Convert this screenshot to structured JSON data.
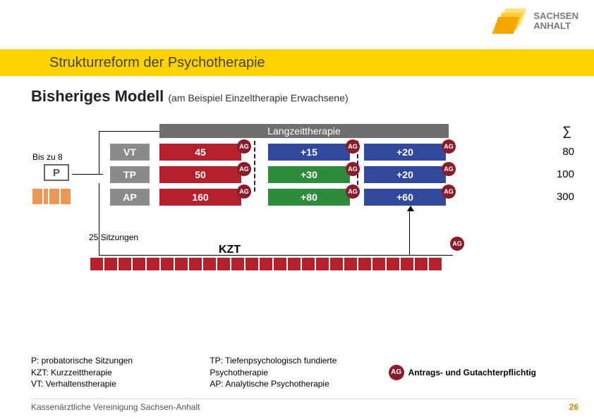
{
  "brand": {
    "line1": "SACHSEN",
    "line2": "ANHALT",
    "logo_colors": [
      "#f5a500",
      "#ffcd3a",
      "#ffe07a"
    ]
  },
  "title": "Strukturreform der Psychotherapie",
  "subtitle_main": "Bisheriges Modell",
  "subtitle_note": "(am Beispiel Einzeltherapie Erwachsene)",
  "lzt_header": "Langzeittherapie",
  "sigma": "∑",
  "bis_label": "Bis zu 8",
  "p_label": "P",
  "p_small_widths": [
    14,
    6,
    14,
    14
  ],
  "p_small_height": 22,
  "rows": {
    "vt": {
      "tag": "VT",
      "b1": "45",
      "b2": "+15",
      "b3": "+20",
      "c1": "#b5202d",
      "c2": "#324a9e",
      "c3": "#324a9e",
      "sum": "80"
    },
    "tp": {
      "tag": "TP",
      "b1": "50",
      "b2": "+30",
      "b3": "+20",
      "c1": "#b5202d",
      "c2": "#2e8b3e",
      "c3": "#324a9e",
      "sum": "100"
    },
    "ap": {
      "tag": "AP",
      "b1": "160",
      "b2": "+80",
      "b3": "+60",
      "c1": "#b5202d",
      "c2": "#2e8b3e",
      "c3": "#324a9e",
      "sum": "300"
    }
  },
  "ag_text": "AG",
  "sitzungen": "25 Sitzungen",
  "kzt_label": "KZT",
  "kzt_count": 25,
  "legend": {
    "col1": [
      "P: probatorische Sitzungen",
      "KZT: Kurzzeittherapie",
      "VT: Verhaltenstherapie"
    ],
    "col2": [
      "TP: Tiefenpsychologisch fundierte",
      "Psychotherapie",
      "AP: Analytische Psychotherapie"
    ],
    "col3": "Antrags- und Gutachterpflichtig"
  },
  "footer_org": "Kassenärztliche Vereinigung Sachsen-Anhalt",
  "page_num": "26",
  "colors": {
    "band": "#ffd200",
    "tag": "#8a8a8a",
    "lzt": "#6f6f6f",
    "ag": "#8a1b2b"
  }
}
